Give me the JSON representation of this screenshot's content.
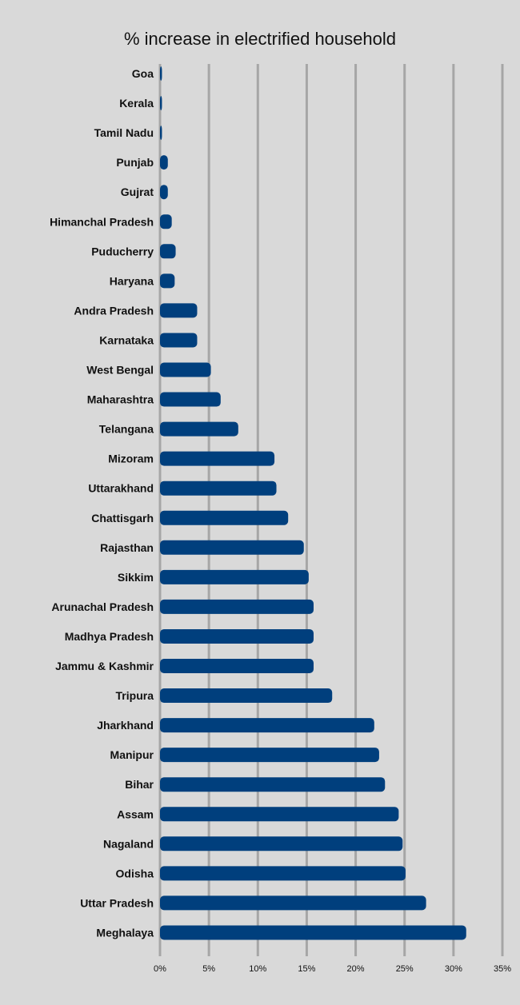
{
  "colors": {
    "background": "#d9d9d9",
    "bar": "#003f7d",
    "grid": "#a6a6a6",
    "text": "#111111"
  },
  "chart_data": {
    "type": "bar",
    "orientation": "horizontal",
    "title": "% increase in electrified household",
    "xlabel": "",
    "ylabel": "",
    "xlim": [
      0,
      35
    ],
    "xticks": [
      0,
      5,
      10,
      15,
      20,
      25,
      30,
      35
    ],
    "xtick_labels": [
      "0%",
      "5%",
      "10%",
      "15%",
      "20%",
      "25%",
      "30%",
      "35%"
    ],
    "grid": "vertical",
    "categories": [
      "Goa",
      "Kerala",
      "Tamil Nadu",
      "Punjab",
      "Gujrat",
      "Himanchal Pradesh",
      "Puducherry",
      "Haryana",
      "Andra Pradesh",
      "Karnataka",
      "West Bengal",
      "Maharashtra",
      "Telangana",
      "Mizoram",
      "Uttarakhand",
      "Chattisgarh",
      "Rajasthan",
      "Sikkim",
      "Arunachal Pradesh",
      "Madhya Pradesh",
      "Jammu & Kashmir",
      "Tripura",
      "Jharkhand",
      "Manipur",
      "Bihar",
      "Assam",
      "Nagaland",
      "Odisha",
      "Uttar Pradesh",
      "Meghalaya"
    ],
    "values": [
      0.2,
      0.2,
      0.2,
      0.8,
      0.8,
      1.2,
      1.6,
      1.5,
      3.8,
      3.8,
      5.2,
      6.2,
      8.0,
      11.7,
      11.9,
      13.1,
      14.7,
      15.2,
      15.7,
      15.7,
      15.7,
      17.6,
      21.9,
      22.4,
      23.0,
      24.4,
      24.8,
      25.1,
      27.2,
      31.3
    ]
  }
}
